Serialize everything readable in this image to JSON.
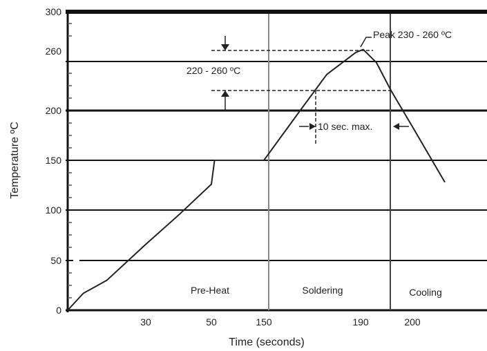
{
  "chart_data": {
    "type": "line",
    "title": "",
    "xlabel": "Time (seconds)",
    "ylabel": "Temperature ºC",
    "ylim": [
      0,
      300
    ],
    "y_ticks": [
      "0",
      "50",
      "100",
      "150",
      "200",
      "260",
      "300"
    ],
    "x_tick_labels": [
      "30",
      "50",
      "150",
      "190",
      "200"
    ],
    "grid": "horizontal",
    "series": [
      {
        "name": "",
        "color": "#222222",
        "points": [
          {
            "x": 0,
            "y": 0
          },
          {
            "x": 6,
            "y": 17
          },
          {
            "x": 15,
            "y": 30
          },
          {
            "x": 30,
            "y": 66
          },
          {
            "x": 40,
            "y": 95
          },
          {
            "x": 50,
            "y": 126
          },
          {
            "x": 56,
            "y": 150
          },
          {
            "x": 150,
            "y": 150
          },
          {
            "x": 165,
            "y": 200
          },
          {
            "x": 176,
            "y": 236
          },
          {
            "x": 188,
            "y": 258
          },
          {
            "x": 191,
            "y": 261
          },
          {
            "x": 196,
            "y": 248
          },
          {
            "x": 202,
            "y": 220
          },
          {
            "x": 212,
            "y": 185
          },
          {
            "x": 228,
            "y": 128
          }
        ]
      }
    ],
    "phases": [
      "Pre-Heat",
      "Soldering",
      "Cooling"
    ],
    "annotations": {
      "peak": "Peak 230 - 260 ºC",
      "range": "220 - 260 ºC",
      "duration": "10 sec. max."
    }
  }
}
